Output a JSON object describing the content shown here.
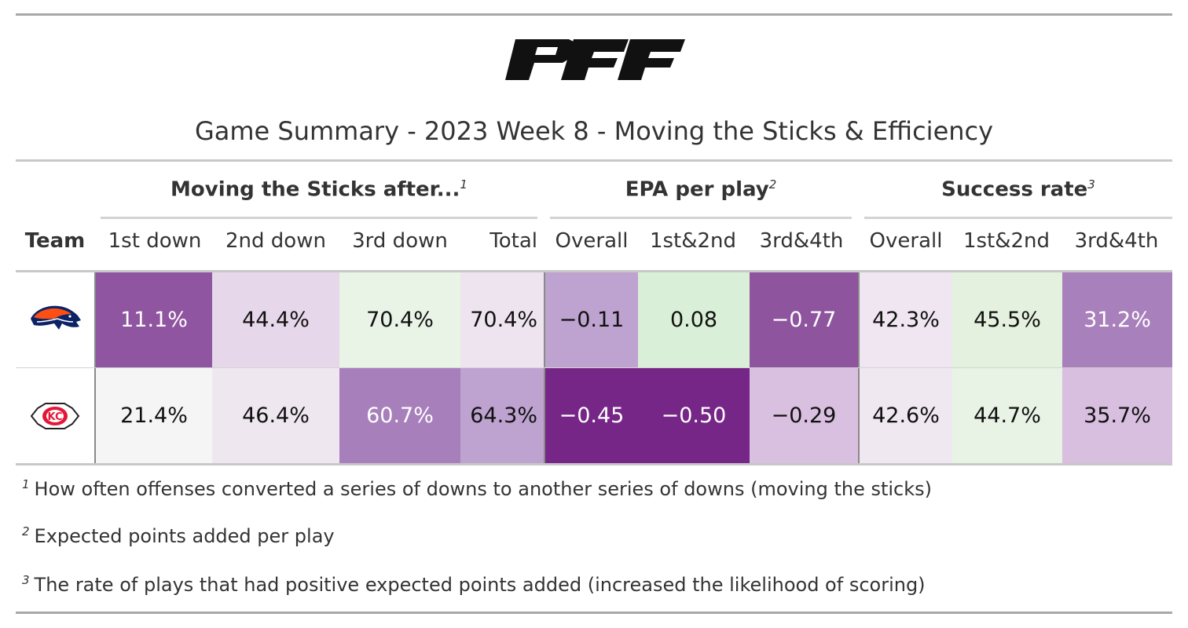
{
  "logo_text": "PFF",
  "title": "Game Summary - 2023 Week 8 - Moving the Sticks & Efficiency",
  "chart_data": {
    "type": "table",
    "title": "Game Summary - 2023 Week 8 - Moving the Sticks & Efficiency",
    "spanners": [
      {
        "label": "Moving the Sticks after...",
        "footnote_mark": "1"
      },
      {
        "label": "EPA per play",
        "footnote_mark": "2"
      },
      {
        "label": "Success rate",
        "footnote_mark": "3"
      }
    ],
    "team_header": "Team",
    "columns": [
      "1st down",
      "2nd down",
      "3rd down",
      "Total",
      "Overall",
      "1st&2nd",
      "3rd&4th",
      "Overall",
      "1st&2nd",
      "3rd&4th"
    ],
    "rows": [
      {
        "team_icon": "denver-broncos-logo-icon",
        "cells": [
          {
            "text": "11.1%",
            "bg": "#8f55a0",
            "fg": "#ffffff"
          },
          {
            "text": "44.4%",
            "bg": "#e7d7ea",
            "fg": "#111111"
          },
          {
            "text": "70.4%",
            "bg": "#e9f3e6",
            "fg": "#111111"
          },
          {
            "text": "70.4%",
            "bg": "#eee4ef",
            "fg": "#111111"
          },
          {
            "text": "−0.11",
            "bg": "#bea2cf",
            "fg": "#111111"
          },
          {
            "text": "0.08",
            "bg": "#daefd7",
            "fg": "#111111"
          },
          {
            "text": "−0.77",
            "bg": "#8e559e",
            "fg": "#ffffff"
          },
          {
            "text": "42.3%",
            "bg": "#efe6f1",
            "fg": "#111111"
          },
          {
            "text": "45.5%",
            "bg": "#e4f1df",
            "fg": "#111111"
          },
          {
            "text": "31.2%",
            "bg": "#a880bb",
            "fg": "#ffffff"
          }
        ]
      },
      {
        "team_icon": "kansas-city-chiefs-logo-icon",
        "cells": [
          {
            "text": "21.4%",
            "bg": "#f5f5f5",
            "fg": "#111111"
          },
          {
            "text": "46.4%",
            "bg": "#efe7f0",
            "fg": "#111111"
          },
          {
            "text": "60.7%",
            "bg": "#a77fbb",
            "fg": "#ffffff"
          },
          {
            "text": "64.3%",
            "bg": "#bea2cf",
            "fg": "#111111"
          },
          {
            "text": "−0.45",
            "bg": "#762686",
            "fg": "#ffffff"
          },
          {
            "text": "−0.50",
            "bg": "#762686",
            "fg": "#ffffff"
          },
          {
            "text": "−0.29",
            "bg": "#d9bfe0",
            "fg": "#111111"
          },
          {
            "text": "42.6%",
            "bg": "#f0e8f1",
            "fg": "#111111"
          },
          {
            "text": "44.7%",
            "bg": "#e8f3e5",
            "fg": "#111111"
          },
          {
            "text": "35.7%",
            "bg": "#d8bedf",
            "fg": "#111111"
          }
        ]
      }
    ],
    "footnotes": [
      {
        "mark": "1",
        "text": "How often offenses converted a series of downs to another series of downs (moving the sticks)"
      },
      {
        "mark": "2",
        "text": "Expected points added per play"
      },
      {
        "mark": "3",
        "text": "The rate of plays that had positive expected points added (increased the likelihood of scoring)"
      }
    ]
  }
}
